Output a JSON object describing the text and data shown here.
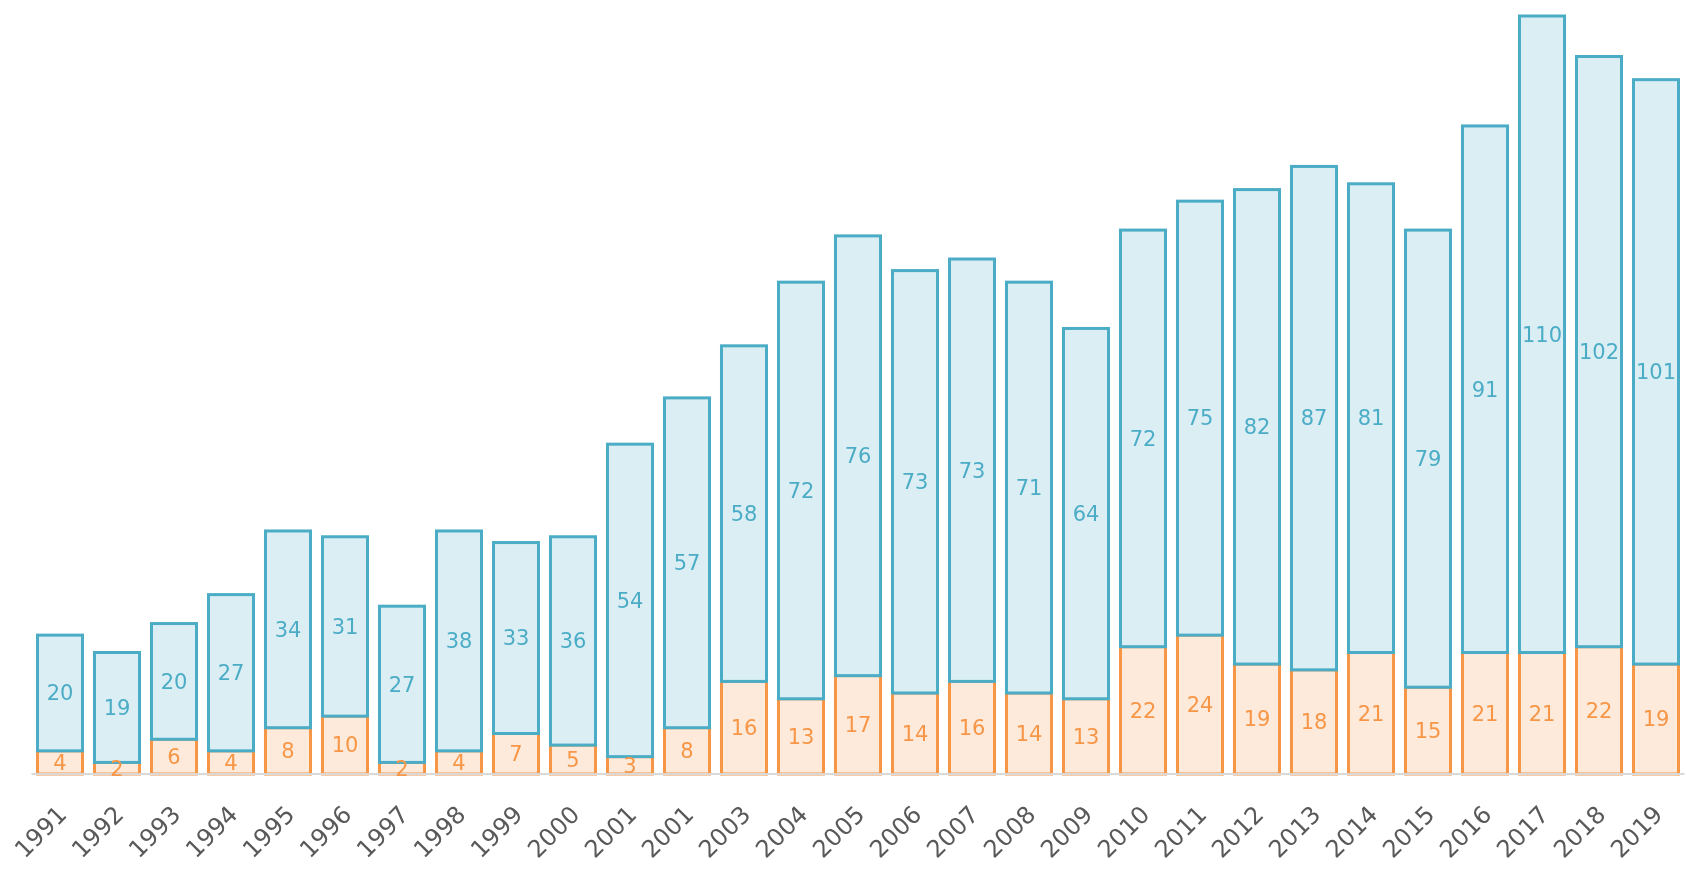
{
  "chart_data": {
    "type": "bar",
    "stacked": true,
    "data_labels": true,
    "categories": [
      "1991",
      "1992",
      "1993",
      "1994",
      "1995",
      "1996",
      "1997",
      "1998",
      "1999",
      "2000",
      "2001",
      "2001",
      "2003",
      "2004",
      "2005",
      "2006",
      "2007",
      "2008",
      "2009",
      "2010",
      "2011",
      "2012",
      "2013",
      "2014",
      "2015",
      "2016",
      "2017",
      "2018",
      "2019"
    ],
    "series": [
      {
        "color": "#f79646",
        "values": [
          4,
          2,
          6,
          4,
          8,
          10,
          2,
          4,
          7,
          5,
          3,
          8,
          16,
          13,
          17,
          14,
          16,
          14,
          13,
          22,
          24,
          19,
          18,
          21,
          15,
          21,
          21,
          22,
          19
        ]
      },
      {
        "color": "#4bacc6",
        "values": [
          20,
          19,
          20,
          27,
          34,
          31,
          27,
          38,
          33,
          36,
          54,
          57,
          58,
          72,
          76,
          73,
          73,
          71,
          64,
          72,
          75,
          82,
          87,
          81,
          79,
          91,
          110,
          102,
          101
        ]
      }
    ]
  }
}
